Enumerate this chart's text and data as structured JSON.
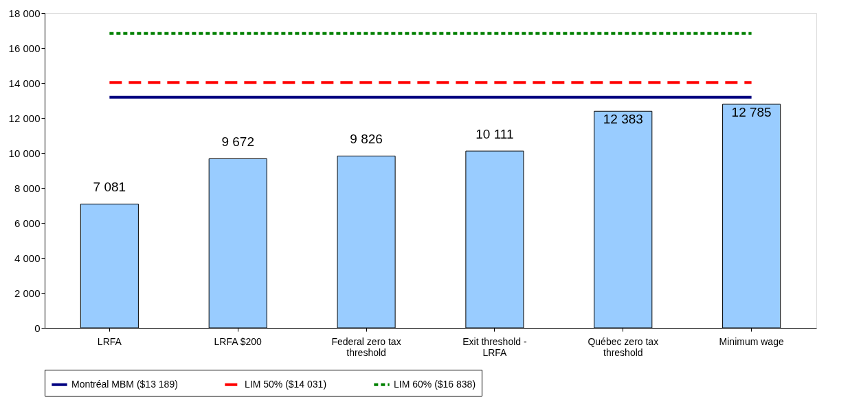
{
  "chart_data": {
    "type": "bar",
    "categories": [
      "LRFA",
      "LRFA $200",
      "Federal zero tax threshold",
      "Exit threshold - LRFA",
      "Québec zero tax threshold",
      "Minimum wage"
    ],
    "series": [
      {
        "color": "#99ccff",
        "values": [
          7081,
          9672,
          9826,
          10111,
          12383,
          12785
        ],
        "value_labels": [
          "7 081",
          "9 672",
          "9 826",
          "10 111",
          "12 383",
          "12 785"
        ]
      },
      {
        "type": "line",
        "name": "Montréal MBM ($13 189)",
        "color": "#000080",
        "line_style": "solid",
        "values": [
          13189,
          13189,
          13189,
          13189,
          13189,
          13189
        ]
      },
      {
        "type": "line",
        "name": "LIM 50% ($14 031)",
        "color": "#ff0000",
        "line_style": "dashed",
        "values": [
          14031,
          14031,
          14031,
          14031,
          14031,
          14031
        ]
      },
      {
        "type": "line",
        "name": "LIM 60% ($16 838)",
        "color": "#008000",
        "line_style": "dotted",
        "values": [
          16838,
          16838,
          16838,
          16838,
          16838,
          16838
        ]
      }
    ],
    "ylim": [
      0,
      18000
    ],
    "yticks": [
      {
        "value": 0,
        "label": "0"
      },
      {
        "value": 2000,
        "label": "2 000"
      },
      {
        "value": 4000,
        "label": "4 000"
      },
      {
        "value": 6000,
        "label": "6 000"
      },
      {
        "value": 8000,
        "label": "8 000"
      },
      {
        "value": 10000,
        "label": "10 000"
      },
      {
        "value": 12000,
        "label": "12 000"
      },
      {
        "value": 14000,
        "label": "14 000"
      },
      {
        "value": 16000,
        "label": "16 000"
      },
      {
        "value": 18000,
        "label": "18 000"
      }
    ],
    "grid": false,
    "legend": "bottom"
  }
}
